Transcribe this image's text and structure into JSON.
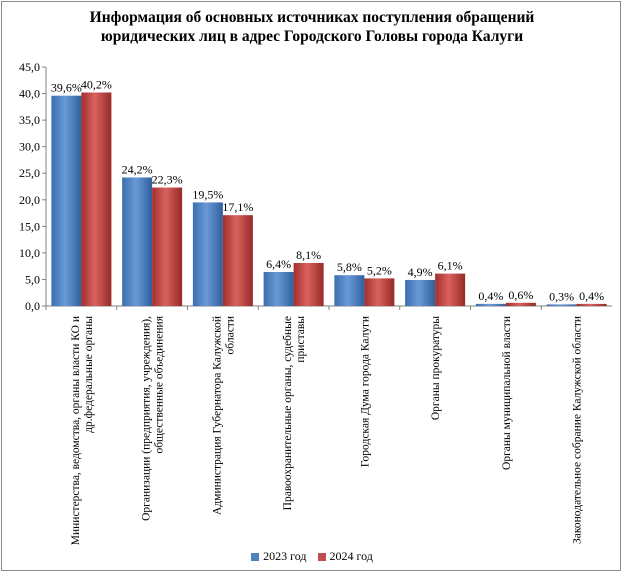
{
  "chart_data": {
    "type": "bar",
    "title": [
      "Информация об основных источниках поступления обращений",
      "юридических лиц в адрес Городского Головы города Калуги"
    ],
    "categories": [
      [
        "Министерства, ведомства, органы власти КО и",
        "др.федеральные органы"
      ],
      [
        "Организации (предприятия, учреждения),",
        "общественные объединения"
      ],
      [
        "Администрация Губернатора Калужской",
        "области"
      ],
      [
        "Правоохранительные органы, судебные",
        "приставы"
      ],
      [
        "Городская Дума города Калуги"
      ],
      [
        "Органы прокуратуры"
      ],
      [
        "Органы муниципальной власти"
      ],
      [
        "Законодательное собрание Калужской области"
      ]
    ],
    "series": [
      {
        "name": "2023 год",
        "color": "#4f81bd",
        "values": [
          39.6,
          24.2,
          19.5,
          6.4,
          5.8,
          4.9,
          0.4,
          0.3
        ],
        "labels": [
          "39,6%",
          "24,2%",
          "19,5%",
          "6,4%",
          "5,8%",
          "4,9%",
          "0,4%",
          "0,3%"
        ]
      },
      {
        "name": "2024 год",
        "color": "#c0504d",
        "values": [
          40.2,
          22.3,
          17.1,
          8.1,
          5.2,
          6.1,
          0.6,
          0.4
        ],
        "labels": [
          "40,2%",
          "22,3%",
          "17,1%",
          "8,1%",
          "5,2%",
          "6,1%",
          "0,6%",
          "0,4%"
        ]
      }
    ],
    "yticks": [
      "0,0",
      "5,0",
      "10,0",
      "15,0",
      "20,0",
      "25,0",
      "30,0",
      "35,0",
      "40,0",
      "45,0"
    ],
    "ylim": [
      0,
      45
    ],
    "grid": false,
    "legend_position": "bottom"
  }
}
